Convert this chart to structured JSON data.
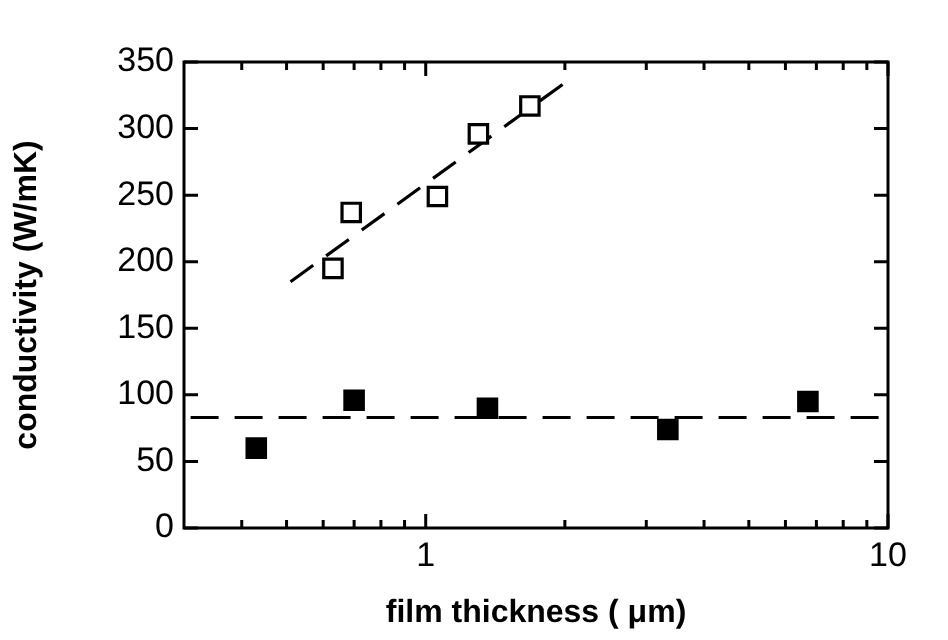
{
  "chart_data": {
    "type": "scatter",
    "xlabel": "film thickness ( μm)",
    "ylabel": "conductivity (W/mK)",
    "log": "x",
    "xlim": [
      0.3,
      10
    ],
    "ylim": [
      0,
      350
    ],
    "xticks": [
      {
        "value": 0.4,
        "label": null
      },
      {
        "value": 0.5,
        "label": null
      },
      {
        "value": 0.6,
        "label": null
      },
      {
        "value": 0.7,
        "label": null
      },
      {
        "value": 0.8,
        "label": null
      },
      {
        "value": 0.9,
        "label": null
      },
      1,
      {
        "value": 2,
        "label": null
      },
      {
        "value": 3,
        "label": null
      },
      {
        "value": 4,
        "label": null
      },
      {
        "value": 5,
        "label": null
      },
      {
        "value": 6,
        "label": null
      },
      {
        "value": 7,
        "label": null
      },
      {
        "value": 8,
        "label": null
      },
      {
        "value": 9,
        "label": null
      },
      10
    ],
    "yticks": [
      0,
      50,
      100,
      150,
      200,
      250,
      300,
      350
    ],
    "grid": false,
    "legend": false,
    "marker": "square",
    "series": [
      {
        "type": "scatter",
        "color": "#000000",
        "x": [
          0.63,
          0.69,
          1.06,
          1.3,
          1.68
        ],
        "values": [
          195,
          237,
          249,
          296,
          317
        ]
      },
      {
        "type": "scatter",
        "color": "#000000",
        "x": [
          0.43,
          0.7,
          1.36,
          3.34,
          6.71
        ],
        "values": [
          60,
          96,
          90,
          74,
          95
        ]
      },
      {
        "type": "line",
        "color": "#000000",
        "line_style": "dashed",
        "marker": "none",
        "x": [
          0.51,
          2.03
        ],
        "values": [
          185,
          336
        ]
      },
      {
        "type": "line",
        "color": "#000000",
        "line_style": "dashed",
        "marker": "none",
        "x": [
          0.31,
          10
        ],
        "values": [
          83,
          83
        ]
      }
    ]
  }
}
